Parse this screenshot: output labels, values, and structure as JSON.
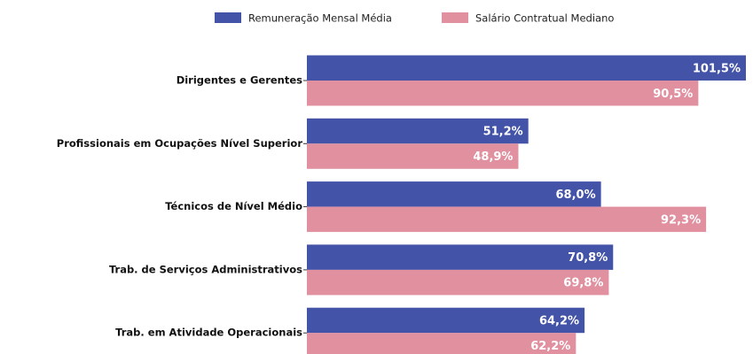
{
  "chart_data": {
    "type": "bar",
    "orientation": "horizontal",
    "categories": [
      "Dirigentes e Gerentes",
      "Profissionais em Ocupações Nível Superior",
      "Técnicos de Nível Médio",
      "Trab. de Serviços Administrativos",
      "Trab. em Atividade Operacionais"
    ],
    "series": [
      {
        "name": "Remuneração Mensal Média",
        "color": "#4353a8",
        "values": [
          101.5,
          51.2,
          68.0,
          70.8,
          64.2
        ],
        "value_labels": [
          "101,5%",
          "51,2%",
          "68,0%",
          "70,8%",
          "64,2%"
        ]
      },
      {
        "name": "Salário Contratual Mediano",
        "color": "#e0909f",
        "values": [
          90.5,
          48.9,
          92.3,
          69.8,
          62.2
        ],
        "value_labels": [
          "90,5%",
          "48,9%",
          "92,3%",
          "69,8%",
          "62,2%"
        ]
      }
    ],
    "legend": "top"
  }
}
